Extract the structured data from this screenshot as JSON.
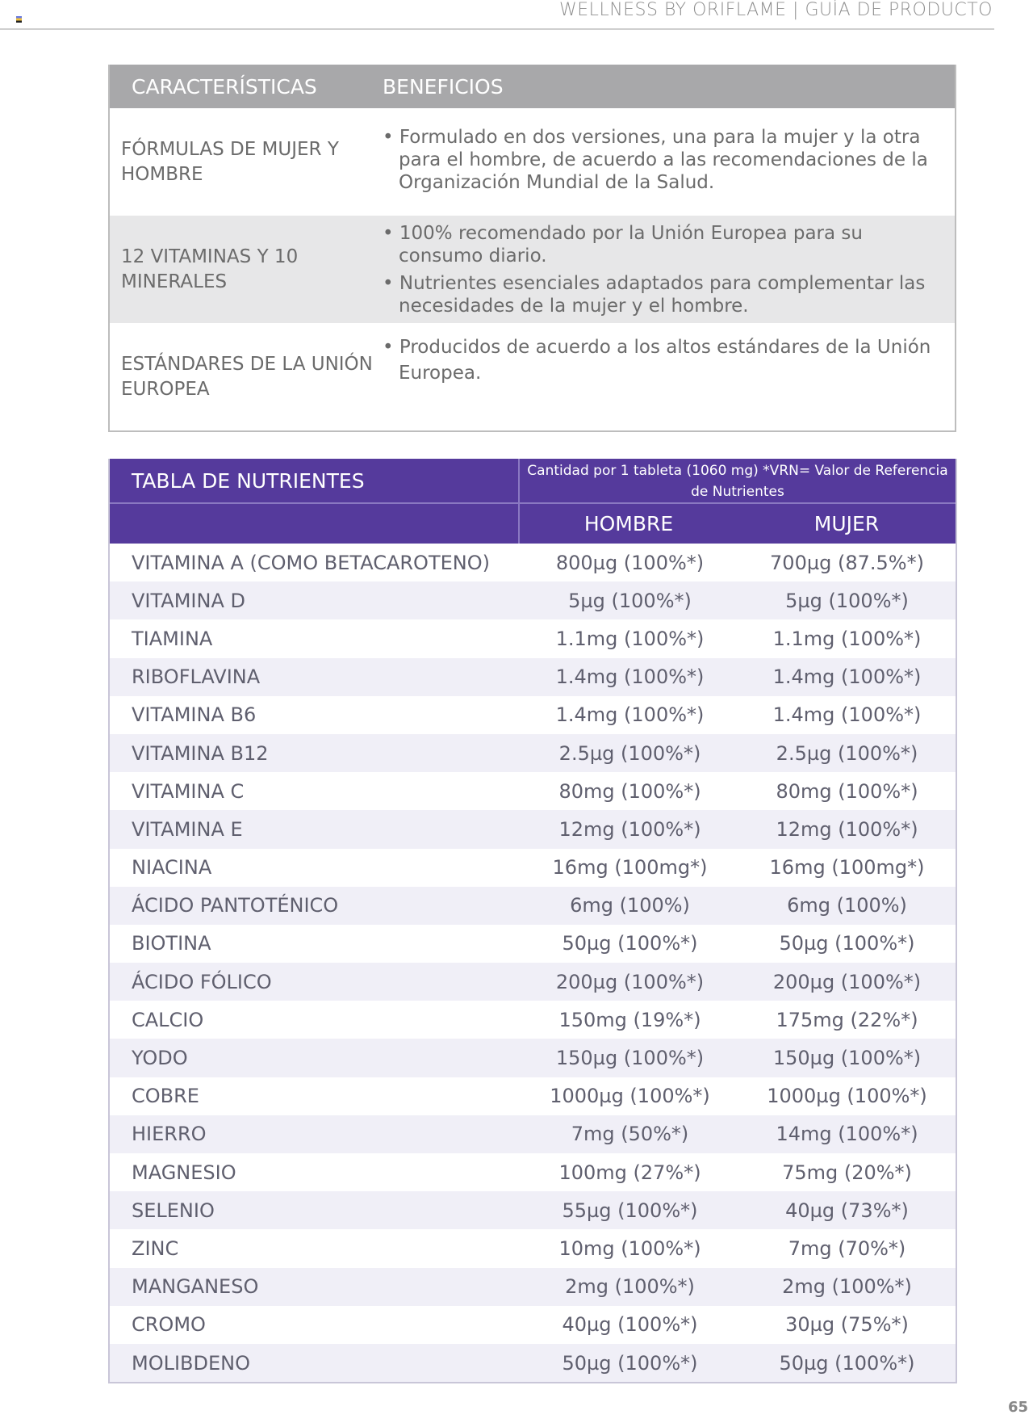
{
  "header": {
    "title": "WELLNESS BY ORIFLAME | GUÍA DE PRODUCTO"
  },
  "features": {
    "headers": [
      "CARACTERÍSTICAS",
      "BENEFICIOS"
    ],
    "rows": [
      {
        "feature": "FÓRMULAS DE MUJER Y HOMBRE",
        "benefits": [
          "• Formulado en dos versiones, una para la mujer y la otra para el hombre, de acuerdo a las recomendaciones de la Organización Mundial de la Salud."
        ]
      },
      {
        "feature": "12 VITAMINAS Y 10 MINERALES",
        "benefits": [
          "• 100% recomendado por la Unión Europea para su consumo diario.",
          "• Nutrientes esenciales adaptados para complementar las necesidades de la mujer y el hombre."
        ]
      },
      {
        "feature": "ESTÁNDARES DE LA UNIÓN EUROPEA",
        "benefits": [
          "• Producidos de acuerdo a los altos estándares de la Unión Europea."
        ]
      }
    ]
  },
  "nutrients": {
    "title": "TABLA DE NUTRIENTES",
    "note": "Cantidad por 1 tableta (1060 mg) *VRN= Valor de Referencia de Nutrientes",
    "columns": [
      "HOMBRE",
      "MUJER"
    ],
    "rows": [
      [
        "VITAMINA A (COMO BETACAROTENO)",
        "800µg (100%*)",
        "700µg (87.5%*)"
      ],
      [
        "VITAMINA D",
        "5µg (100%*)",
        "5µg (100%*)"
      ],
      [
        "TIAMINA",
        "1.1mg (100%*)",
        "1.1mg (100%*)"
      ],
      [
        "RIBOFLAVINA",
        "1.4mg (100%*)",
        "1.4mg (100%*)"
      ],
      [
        "VITAMINA B6",
        "1.4mg (100%*)",
        "1.4mg (100%*)"
      ],
      [
        "VITAMINA B12",
        "2.5µg (100%*)",
        "2.5µg (100%*)"
      ],
      [
        "VITAMINA C",
        "80mg (100%*)",
        "80mg (100%*)"
      ],
      [
        "VITAMINA E",
        "12mg (100%*)",
        "12mg (100%*)"
      ],
      [
        "NIACINA",
        "16mg (100mg*)",
        "16mg (100mg*)"
      ],
      [
        "ÁCIDO PANTOTÉNICO",
        "6mg (100%)",
        "6mg (100%)"
      ],
      [
        "BIOTINA",
        "50µg (100%*)",
        "50µg (100%*)"
      ],
      [
        "ÁCIDO FÓLICO",
        "200µg (100%*)",
        "200µg (100%*)"
      ],
      [
        "CALCIO",
        "150mg (19%*)",
        "175mg (22%*)"
      ],
      [
        "YODO",
        "150µg (100%*)",
        "150µg (100%*)"
      ],
      [
        "COBRE",
        "1000µg (100%*)",
        "1000µg (100%*)"
      ],
      [
        "HIERRO",
        "7mg (50%*)",
        "14mg (100%*)"
      ],
      [
        "MAGNESIO",
        "100mg (27%*)",
        "75mg (20%*)"
      ],
      [
        "SELENIO",
        "55µg (100%*)",
        "40µg (73%*)"
      ],
      [
        "ZINC",
        "10mg (100%*)",
        "7mg (70%*)"
      ],
      [
        "MANGANESO",
        "2mg (100%*)",
        "2mg (100%*)"
      ],
      [
        "CROMO",
        "40µg (100%*)",
        "30µg (75%*)"
      ],
      [
        "MOLIBDENO",
        "50µg (100%*)",
        "50µg (100%*)"
      ]
    ]
  },
  "page_number": "65",
  "colors": {
    "purple": "#553a9c",
    "gray_header": "#a8a8aa"
  }
}
